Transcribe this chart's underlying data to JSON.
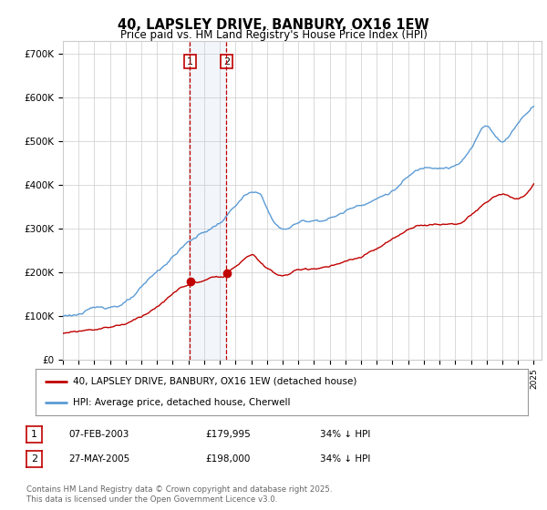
{
  "title": "40, LAPSLEY DRIVE, BANBURY, OX16 1EW",
  "subtitle": "Price paid vs. HM Land Registry's House Price Index (HPI)",
  "ylim": [
    0,
    730000
  ],
  "yticks": [
    0,
    100000,
    200000,
    300000,
    400000,
    500000,
    600000,
    700000
  ],
  "ytick_labels": [
    "£0",
    "£100K",
    "£200K",
    "£300K",
    "£400K",
    "£500K",
    "£600K",
    "£700K"
  ],
  "hpi_color": "#5b9bd5",
  "price_color": "#c00000",
  "marker1_year": 2003.1,
  "marker2_year": 2005.42,
  "marker1_price": 179995,
  "marker2_price": 198000,
  "legend_line1": "40, LAPSLEY DRIVE, BANBURY, OX16 1EW (detached house)",
  "legend_line2": "HPI: Average price, detached house, Cherwell",
  "table_row1": [
    "1",
    "07-FEB-2003",
    "£179,995",
    "34% ↓ HPI"
  ],
  "table_row2": [
    "2",
    "27-MAY-2005",
    "£198,000",
    "34% ↓ HPI"
  ],
  "footnote": "Contains HM Land Registry data © Crown copyright and database right 2025.\nThis data is licensed under the Open Government Licence v3.0.",
  "background_color": "#ffffff",
  "grid_color": "#cccccc"
}
